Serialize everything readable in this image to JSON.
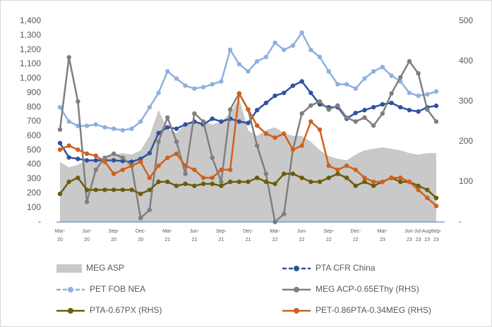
{
  "chart_data": {
    "type": "line",
    "categories": [
      "Mar-20",
      null,
      null,
      "Jun-20",
      null,
      null,
      "Sep-20",
      null,
      null,
      "Dec-20",
      null,
      null,
      "Mar-21",
      null,
      null,
      "Jun-21",
      null,
      null,
      "Sep-21",
      null,
      null,
      "Dec-21",
      null,
      null,
      "Mar-22",
      null,
      null,
      "Jun-22",
      null,
      null,
      "Sep-22",
      null,
      null,
      "Dec-22",
      null,
      null,
      "Mar-23",
      null,
      null,
      "Jun-23",
      "Jul-23",
      "Aug-23",
      "Sep-23"
    ],
    "ylim": [
      0,
      1400
    ],
    "yticks": [
      {
        "value": 0,
        "label": "-"
      },
      100,
      200,
      300,
      400,
      500,
      600,
      700,
      800,
      900,
      {
        "value": 1000,
        "label": "1,000"
      },
      {
        "value": 1100,
        "label": "1,100"
      },
      {
        "value": 1200,
        "label": "1,200"
      },
      {
        "value": 1300,
        "label": "1,300"
      },
      {
        "value": 1400,
        "label": "1,400"
      }
    ],
    "y2lim": [
      0,
      500
    ],
    "y2ticks": [
      {
        "value": 0,
        "label": "-"
      },
      100,
      200,
      300,
      400,
      500
    ],
    "series": [
      {
        "name": "MEG ASP",
        "color": "#c9c9c9",
        "style": "area",
        "values": [
          420,
          380,
          400,
          430,
          440,
          450,
          470,
          480,
          470,
          500,
          600,
          780,
          650,
          620,
          680,
          690,
          700,
          680,
          700,
          760,
          860,
          640,
          600,
          640,
          660,
          620,
          600,
          600,
          560,
          500,
          460,
          440,
          430,
          470,
          500,
          510,
          520,
          510,
          500,
          480,
          470,
          480,
          480
        ]
      },
      {
        "name": "PTA CFR China",
        "color": "#2f52a0",
        "style": "line",
        "dash": true,
        "values": [
          550,
          450,
          440,
          430,
          430,
          430,
          430,
          425,
          420,
          440,
          480,
          620,
          660,
          650,
          680,
          700,
          680,
          720,
          700,
          720,
          700,
          690,
          780,
          830,
          880,
          900,
          950,
          980,
          900,
          820,
          800,
          800,
          720,
          760,
          780,
          800,
          820,
          830,
          800,
          780,
          770,
          800,
          810
        ]
      },
      {
        "name": "PET FOB NEA",
        "color": "#8fb0e0",
        "style": "line",
        "dash": true,
        "values": [
          800,
          700,
          670,
          670,
          680,
          660,
          650,
          640,
          650,
          700,
          800,
          900,
          1050,
          1000,
          950,
          930,
          940,
          960,
          980,
          1200,
          1100,
          1050,
          1120,
          1150,
          1250,
          1200,
          1230,
          1320,
          1200,
          1150,
          1050,
          960,
          960,
          930,
          1000,
          1050,
          1080,
          1020,
          980,
          900,
          880,
          890,
          910
        ]
      },
      {
        "name": "MEG ACP-0.65EThy (RHS)",
        "color": "#7f7f7f",
        "style": "line",
        "dash": false,
        "axis": "y2",
        "values": [
          230,
          410,
          300,
          50,
          130,
          160,
          170,
          160,
          140,
          10,
          30,
          200,
          260,
          200,
          120,
          270,
          250,
          160,
          100,
          280,
          320,
          280,
          190,
          120,
          0,
          20,
          180,
          270,
          290,
          300,
          280,
          290,
          260,
          250,
          260,
          240,
          270,
          320,
          360,
          400,
          370,
          280,
          250
        ]
      },
      {
        "name": "PTA-0.67PX (RHS)",
        "color": "#6b5d0a",
        "style": "line",
        "dash": false,
        "axis": "y2",
        "values": [
          70,
          100,
          110,
          80,
          80,
          80,
          80,
          80,
          80,
          70,
          80,
          100,
          100,
          90,
          95,
          90,
          95,
          95,
          90,
          100,
          100,
          100,
          110,
          100,
          95,
          120,
          120,
          110,
          100,
          100,
          110,
          120,
          110,
          90,
          100,
          90,
          100,
          110,
          100,
          100,
          90,
          80,
          60
        ]
      },
      {
        "name": "PET-0.86PTA-0.34MEG (RHS)",
        "color": "#d0611c",
        "style": "line",
        "dash": false,
        "axis": "y2",
        "values": [
          180,
          190,
          180,
          170,
          165,
          150,
          120,
          130,
          140,
          150,
          110,
          140,
          160,
          170,
          140,
          130,
          110,
          110,
          130,
          130,
          320,
          280,
          240,
          220,
          210,
          220,
          180,
          190,
          250,
          230,
          140,
          130,
          140,
          130,
          110,
          100,
          100,
          110,
          110,
          100,
          80,
          60,
          40
        ]
      }
    ]
  }
}
